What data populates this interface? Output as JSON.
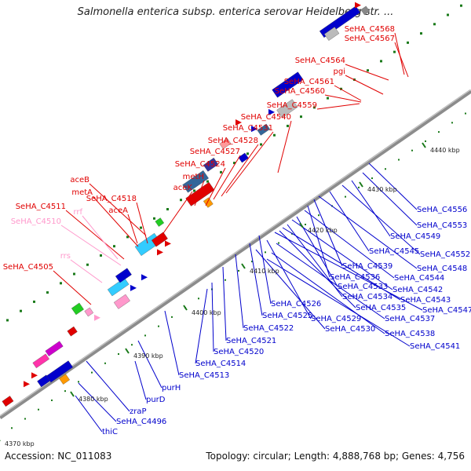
{
  "title": "Salmonella enterica subsp. enterica serovar Heidelberg str. ...",
  "footer": {
    "accession": "Accession: NC_011083",
    "topology": "Topology: circular; Length: 4,888,768 bp; Genes: 4,756"
  },
  "colors": {
    "forward_label": "#e00000",
    "reverse_label": "#0000cc",
    "rna_label": "#ff99cc",
    "backbone": "#888888",
    "tick": "#1a7a1a"
  },
  "kbp_ticks": [
    "4370 kbp",
    "4380 kbp",
    "4390 kbp",
    "4400 kbp",
    "4410 kbp",
    "4420 kbp",
    "4430 kbp",
    "4440 kbp"
  ],
  "labels_top": [
    {
      "text": "SeHA_C4568",
      "color": "red"
    },
    {
      "text": "SeHA_C4567",
      "color": "red"
    },
    {
      "text": "SeHA_C4564",
      "color": "red"
    },
    {
      "text": "pgi",
      "color": "red"
    },
    {
      "text": "SeHA_C4561",
      "color": "red"
    },
    {
      "text": "SeHA_C4560",
      "color": "red"
    },
    {
      "text": "SeHA_C4559",
      "color": "red"
    },
    {
      "text": "SeHA_C4540",
      "color": "red"
    },
    {
      "text": "SeHA_C4531",
      "color": "red"
    },
    {
      "text": "SeHA_C4528",
      "color": "red"
    },
    {
      "text": "SeHA_C4527",
      "color": "red"
    },
    {
      "text": "SeHA_C4524",
      "color": "red"
    },
    {
      "text": "metH",
      "color": "red"
    },
    {
      "text": "aceK",
      "color": "red"
    },
    {
      "text": "aceB",
      "color": "red"
    },
    {
      "text": "metA",
      "color": "red"
    },
    {
      "text": "SeHA_C4518",
      "color": "red"
    },
    {
      "text": "SeHA_C4511",
      "color": "red"
    },
    {
      "text": "aceA",
      "color": "red"
    },
    {
      "text": "rrf",
      "color": "pink"
    },
    {
      "text": "SeHA_C4510",
      "color": "pink"
    },
    {
      "text": "rrs",
      "color": "pink"
    },
    {
      "text": "SeHA_C4505",
      "color": "red"
    }
  ],
  "labels_bottom": [
    "SeHA_C4556",
    "SeHA_C4553",
    "SeHA_C4549",
    "SeHA_C4552",
    "SeHA_C4545",
    "SeHA_C4548",
    "SeHA_C4539",
    "SeHA_C4536",
    "SeHA_C4544",
    "SeHA_C4533",
    "SeHA_C4542",
    "SeHA_C4534",
    "SeHA_C4543",
    "SeHA_C4535",
    "SeHA_C4547",
    "SeHA_C4526",
    "SeHA_C4529",
    "SeHA_C4537",
    "SeHA_C4525",
    "SeHA_C4530",
    "SeHA_C4538",
    "SeHA_C4522",
    "SeHA_C4541",
    "SeHA_C4521",
    "SeHA_C4520",
    "SeHA_C4514",
    "SeHA_C4513",
    "purH",
    "purD",
    "zraP",
    "SeHA_C4496",
    "thiC"
  ]
}
